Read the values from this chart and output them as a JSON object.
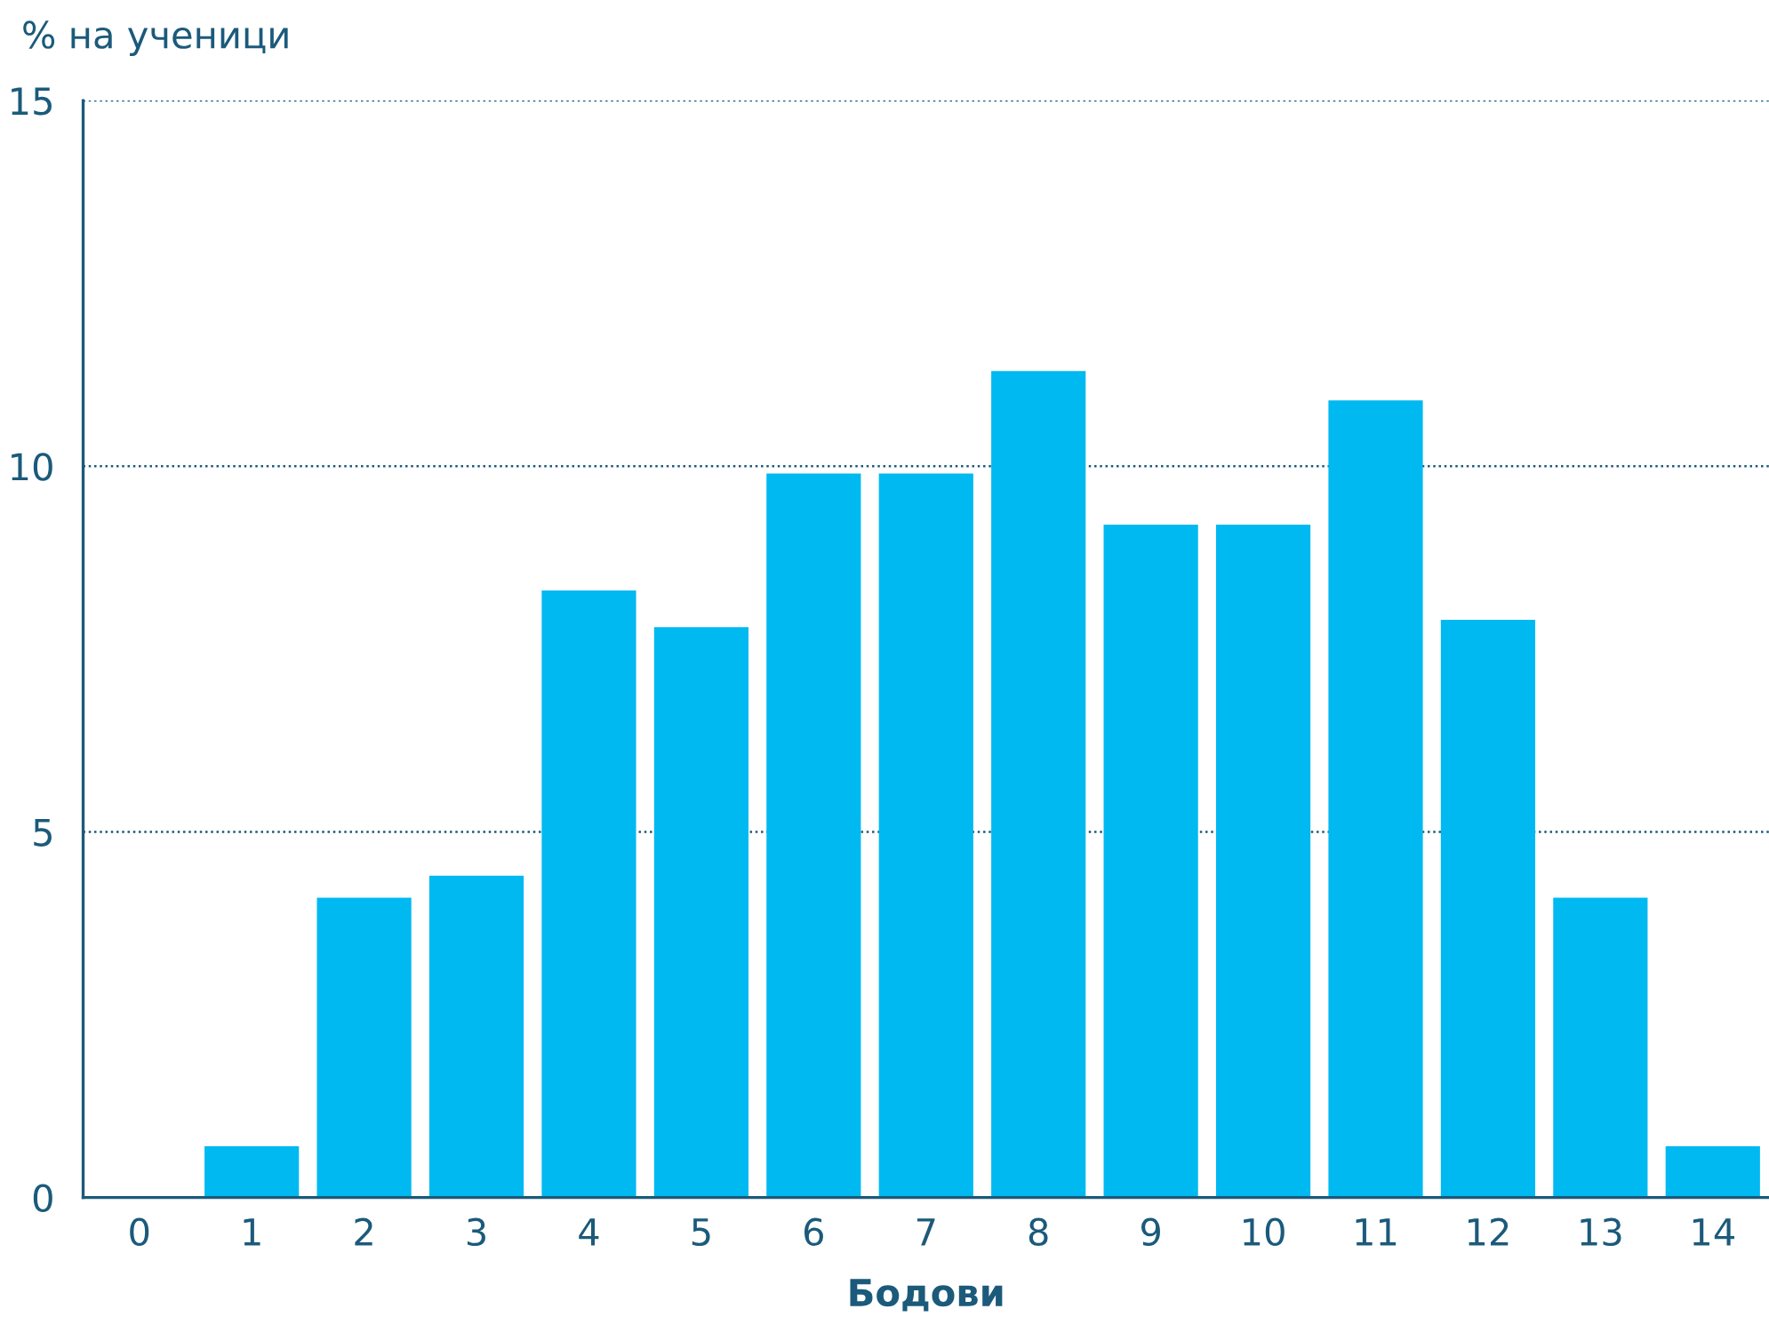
{
  "chart_data": {
    "type": "bar",
    "xlabel": "Бодови",
    "ylabel": "% на ученици",
    "categories": [
      "0",
      "1",
      "2",
      "3",
      "4",
      "5",
      "6",
      "7",
      "8",
      "9",
      "10",
      "11",
      "12",
      "13",
      "14"
    ],
    "values": [
      0,
      0.7,
      4.1,
      4.4,
      8.3,
      7.8,
      9.9,
      9.9,
      11.3,
      9.2,
      9.2,
      10.9,
      7.9,
      4.1,
      0.7
    ],
    "color": "#00b9f1",
    "ylim": [
      0,
      15
    ],
    "yticks": [
      0,
      5,
      10,
      15
    ],
    "grid": "y"
  }
}
